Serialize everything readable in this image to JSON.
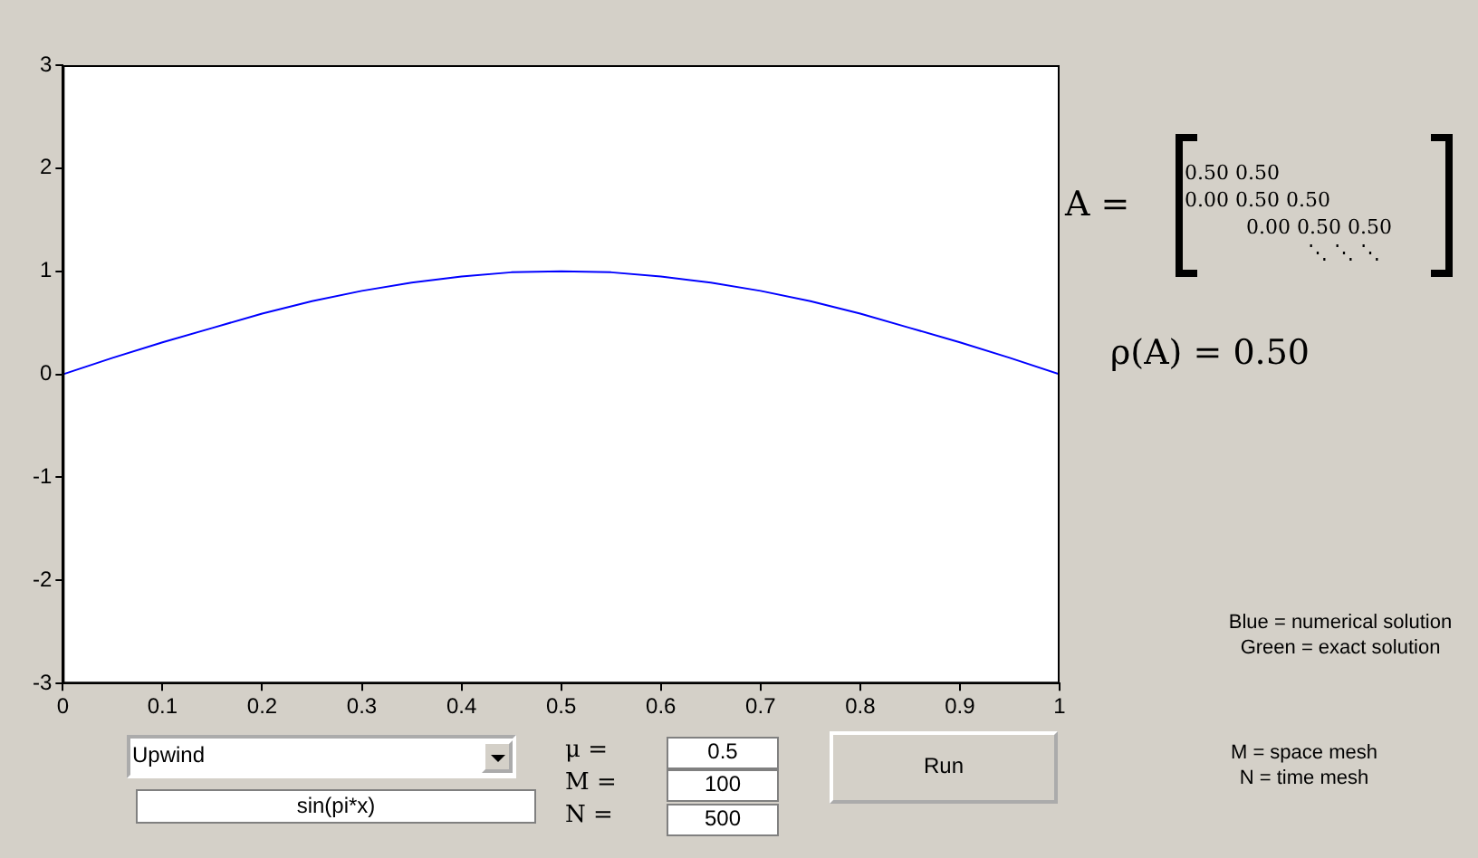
{
  "chart_data": {
    "type": "line",
    "x": [
      0,
      0.05,
      0.1,
      0.15,
      0.2,
      0.25,
      0.3,
      0.35,
      0.4,
      0.45,
      0.5,
      0.55,
      0.6,
      0.65,
      0.7,
      0.75,
      0.8,
      0.85,
      0.9,
      0.95,
      1
    ],
    "series": [
      {
        "color": "#0000ff",
        "values": [
          0,
          0.16,
          0.31,
          0.45,
          0.59,
          0.71,
          0.81,
          0.89,
          0.95,
          0.99,
          1.0,
          0.99,
          0.95,
          0.89,
          0.81,
          0.71,
          0.59,
          0.45,
          0.31,
          0.16,
          0
        ]
      }
    ],
    "xlim": [
      0,
      1
    ],
    "xticks": [
      0,
      0.1,
      0.2,
      0.3,
      0.4,
      0.5,
      0.6,
      0.7,
      0.8,
      0.9,
      1
    ],
    "ylim": [
      -3,
      3
    ],
    "yticks": [
      -3,
      -2,
      -1,
      0,
      1,
      2,
      3
    ],
    "legend": false,
    "marker": "none",
    "line_style": "solid",
    "annotations": [
      "A =",
      "0.50 0.50",
      "0.00 0.50 0.50",
      "0.00 0.50 0.50",
      "⋱ ⋱ ⋱",
      "ρ(A) = 0.50",
      "Blue = numerical solution",
      "Green = exact solution",
      "Upwind",
      "sin(pi*x)",
      "μ =",
      "M =",
      "N =",
      "0.5",
      "100",
      "500",
      "Run",
      "M = space mesh",
      "N = time mesh"
    ]
  }
}
